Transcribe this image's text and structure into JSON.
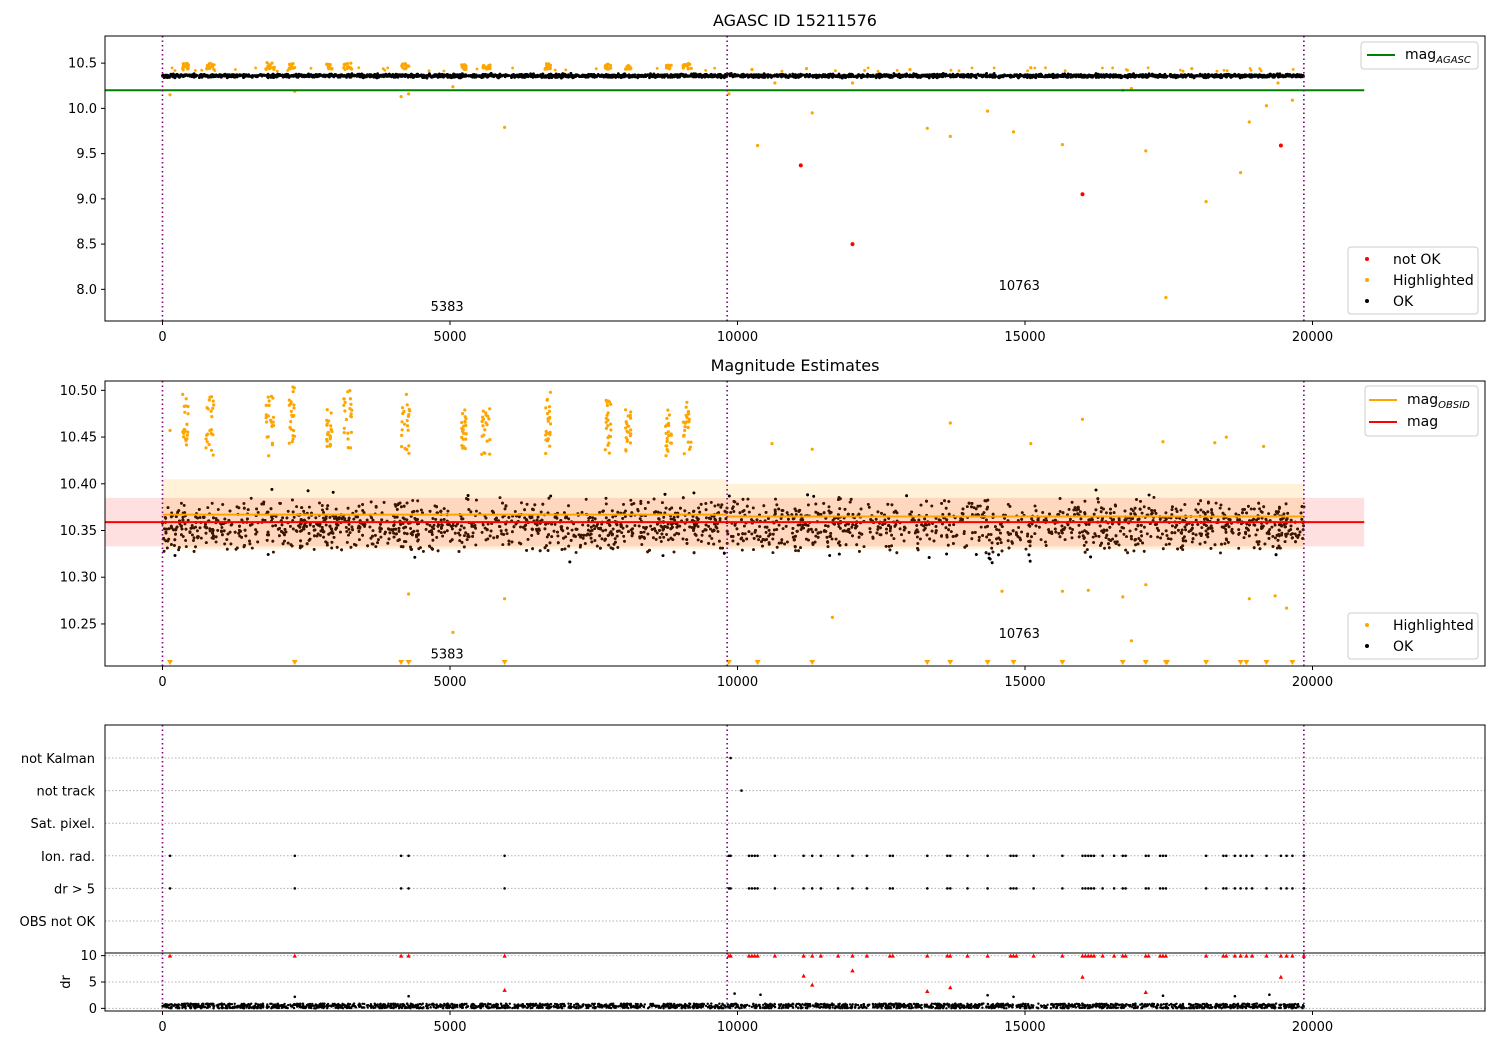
{
  "chart_data": [
    {
      "type": "scatter",
      "title": "AGASC ID 15211576",
      "xlim": [
        -1000,
        23000
      ],
      "ylim": [
        7.65,
        10.8
      ],
      "xticks": [
        0,
        5000,
        10000,
        15000,
        20000
      ],
      "yticks": [
        8.0,
        8.5,
        9.0,
        9.5,
        10.0,
        10.5
      ],
      "ytick_labels": [
        "8.0",
        "8.5",
        "9.0",
        "9.5",
        "10.0",
        "10.5"
      ],
      "obsid_boundaries": [
        0,
        9820,
        19850
      ],
      "obsid_labels": [
        {
          "text": "5383",
          "x": 4950,
          "y": 7.76
        },
        {
          "text": "10763",
          "x": 14900,
          "y": 7.99
        }
      ],
      "lines": [
        {
          "name": "mag_AGASC",
          "color": "#008000",
          "x": [
            -1000,
            20900
          ],
          "y": [
            10.2,
            10.2
          ]
        }
      ],
      "ok_band": {
        "y_center": 10.36,
        "y_spread": 0.035,
        "x_range": [
          0,
          19850
        ],
        "color": "#000000"
      },
      "highlighted_clusters": [
        {
          "x_range": [
            350,
            450
          ],
          "y_range": [
            10.43,
            10.5
          ]
        },
        {
          "x_range": [
            750,
            900
          ],
          "y_range": [
            10.43,
            10.5
          ]
        },
        {
          "x_range": [
            1800,
            1950
          ],
          "y_range": [
            10.43,
            10.52
          ]
        },
        {
          "x_range": [
            2200,
            2300
          ],
          "y_range": [
            10.43,
            10.5
          ]
        },
        {
          "x_range": [
            2850,
            2950
          ],
          "y_range": [
            10.43,
            10.49
          ]
        },
        {
          "x_range": [
            3150,
            3300
          ],
          "y_range": [
            10.43,
            10.5
          ]
        },
        {
          "x_range": [
            4150,
            4300
          ],
          "y_range": [
            10.43,
            10.5
          ]
        },
        {
          "x_range": [
            5200,
            5300
          ],
          "y_range": [
            10.43,
            10.49
          ]
        },
        {
          "x_range": [
            5550,
            5700
          ],
          "y_range": [
            10.43,
            10.49
          ]
        },
        {
          "x_range": [
            6650,
            6750
          ],
          "y_range": [
            10.43,
            10.5
          ]
        },
        {
          "x_range": [
            7700,
            7800
          ],
          "y_range": [
            10.43,
            10.49
          ]
        },
        {
          "x_range": [
            8050,
            8150
          ],
          "y_range": [
            10.43,
            10.48
          ]
        },
        {
          "x_range": [
            8750,
            8850
          ],
          "y_range": [
            10.43,
            10.48
          ]
        },
        {
          "x_range": [
            9050,
            9200
          ],
          "y_range": [
            10.43,
            10.5
          ]
        }
      ],
      "highlighted_points": {
        "x": [
          130,
          2300,
          4150,
          4280,
          5050,
          5950,
          9850,
          10350,
          10650,
          11300,
          12000,
          13300,
          13700,
          14350,
          14800,
          15650,
          16700,
          16850,
          17100,
          17450,
          18150,
          18750,
          18900,
          19200,
          19400,
          19650,
          10250,
          11200,
          13000,
          15100,
          17900
        ],
        "y": [
          10.15,
          10.19,
          10.13,
          10.16,
          10.24,
          9.79,
          10.16,
          9.59,
          10.28,
          9.95,
          10.28,
          9.78,
          9.69,
          9.97,
          9.74,
          9.6,
          10.2,
          10.22,
          9.53,
          7.91,
          8.97,
          9.29,
          9.85,
          10.03,
          10.28,
          10.09,
          10.43,
          10.44,
          10.43,
          10.45,
          10.44
        ]
      },
      "not_ok_points": {
        "x": [
          11100,
          12000,
          16000,
          19450
        ],
        "y": [
          9.37,
          8.5,
          9.05,
          9.59
        ]
      },
      "legend_lines": [
        {
          "label_base": "mag",
          "label_sub": "AGASC",
          "color": "#008000"
        }
      ],
      "legend_points": [
        {
          "label": "not OK",
          "color": "#ff0000"
        },
        {
          "label": "Highlighted",
          "color": "#ffa500"
        },
        {
          "label": "OK",
          "color": "#000000"
        }
      ]
    },
    {
      "type": "scatter",
      "title": "Magnitude Estimates",
      "xlim": [
        -1000,
        23000
      ],
      "ylim": [
        10.205,
        10.51
      ],
      "xticks": [
        0,
        5000,
        10000,
        15000,
        20000
      ],
      "yticks": [
        10.25,
        10.3,
        10.35,
        10.4,
        10.45,
        10.5
      ],
      "ytick_labels": [
        "10.25",
        "10.30",
        "10.35",
        "10.40",
        "10.45",
        "10.50"
      ],
      "obsid_boundaries": [
        0,
        9820,
        19850
      ],
      "obsid_labels": [
        {
          "text": "5383",
          "x": 4950,
          "y": 10.213
        },
        {
          "text": "10763",
          "x": 14900,
          "y": 10.235
        }
      ],
      "lines": [
        {
          "name": "mag_OBSID_5383",
          "color": "#ffa500",
          "x": [
            0,
            9820
          ],
          "y": [
            10.367,
            10.367
          ]
        },
        {
          "name": "mag_OBSID_10763",
          "color": "#ffa500",
          "x": [
            9820,
            19850
          ],
          "y": [
            10.365,
            10.365
          ]
        },
        {
          "name": "mag",
          "color": "#ff0000",
          "x": [
            -1000,
            20900
          ],
          "y": [
            10.359,
            10.359
          ]
        }
      ],
      "bands": [
        {
          "color": "#ff0000",
          "opacity": 0.12,
          "x": [
            -1000,
            20900
          ],
          "y": [
            10.333,
            10.385
          ]
        },
        {
          "color": "#ffa500",
          "opacity": 0.15,
          "x": [
            0,
            9820
          ],
          "y": [
            10.33,
            10.405
          ]
        },
        {
          "color": "#ffa500",
          "opacity": 0.15,
          "x": [
            9820,
            19850
          ],
          "y": [
            10.33,
            10.4
          ]
        }
      ],
      "ok_band": {
        "y_center": 10.356,
        "y_spread": 0.06,
        "x_range": [
          0,
          19850
        ],
        "color": "#000000"
      },
      "highlighted_clusters": [
        {
          "x_range": [
            350,
            450
          ],
          "y_range": [
            10.44,
            10.5
          ]
        },
        {
          "x_range": [
            750,
            900
          ],
          "y_range": [
            10.43,
            10.5
          ]
        },
        {
          "x_range": [
            1800,
            1950
          ],
          "y_range": [
            10.43,
            10.505
          ]
        },
        {
          "x_range": [
            2200,
            2300
          ],
          "y_range": [
            10.44,
            10.505
          ]
        },
        {
          "x_range": [
            2850,
            2950
          ],
          "y_range": [
            10.44,
            10.48
          ]
        },
        {
          "x_range": [
            3150,
            3300
          ],
          "y_range": [
            10.43,
            10.5
          ]
        },
        {
          "x_range": [
            4150,
            4300
          ],
          "y_range": [
            10.43,
            10.5
          ]
        },
        {
          "x_range": [
            5200,
            5300
          ],
          "y_range": [
            10.43,
            10.48
          ]
        },
        {
          "x_range": [
            5550,
            5700
          ],
          "y_range": [
            10.43,
            10.485
          ]
        },
        {
          "x_range": [
            6650,
            6750
          ],
          "y_range": [
            10.43,
            10.505
          ]
        },
        {
          "x_range": [
            7700,
            7800
          ],
          "y_range": [
            10.43,
            10.49
          ]
        },
        {
          "x_range": [
            8050,
            8150
          ],
          "y_range": [
            10.43,
            10.485
          ]
        },
        {
          "x_range": [
            8750,
            8850
          ],
          "y_range": [
            10.43,
            10.48
          ]
        },
        {
          "x_range": [
            9050,
            9200
          ],
          "y_range": [
            10.43,
            10.49
          ]
        }
      ],
      "highlighted_points": {
        "x": [
          130,
          4280,
          5050,
          5950,
          11650,
          14600,
          15650,
          16100,
          16700,
          16850,
          17100,
          18500,
          18900,
          19350,
          19550,
          10600,
          11300,
          13700,
          15100,
          16000,
          17400,
          18300,
          19150
        ],
        "y": [
          10.457,
          10.282,
          10.241,
          10.277,
          10.257,
          10.285,
          10.285,
          10.286,
          10.279,
          10.232,
          10.292,
          10.45,
          10.277,
          10.28,
          10.267,
          10.443,
          10.437,
          10.465,
          10.443,
          10.469,
          10.445,
          10.444,
          10.44
        ]
      },
      "triangle_markers_x": [
        130,
        2300,
        4150,
        4280,
        5950,
        9850,
        10350,
        11300,
        13300,
        13700,
        14350,
        14800,
        15650,
        16700,
        17100,
        17450,
        17470,
        18150,
        18750,
        18850,
        19200,
        19650
      ],
      "legend_lines": [
        {
          "label_base": "mag",
          "label_sub": "OBSID",
          "color": "#ffa500"
        },
        {
          "label_base": "mag",
          "label_sub": "",
          "color": "#ff0000"
        }
      ],
      "legend_points": [
        {
          "label": "Highlighted",
          "color": "#ffa500"
        },
        {
          "label": "OK",
          "color": "#000000"
        }
      ]
    },
    {
      "type": "scatter",
      "title": "",
      "xlim": [
        -1000,
        23000
      ],
      "xticks": [
        0,
        5000,
        10000,
        15000,
        20000
      ],
      "obsid_boundaries": [
        0,
        9820,
        19850
      ],
      "flag_labels": [
        "not Kalman",
        "not track",
        "Sat. pixel.",
        "Ion. rad.",
        "dr > 5",
        "OBS not OK"
      ],
      "flag_events": {
        "not Kalman": [
          9880
        ],
        "not track": [
          10070
        ],
        "Sat. pixel.": [],
        "Ion. rad.": [
          130,
          2300,
          4150,
          4280,
          5950,
          9850,
          9880,
          10200,
          10250,
          10300,
          10350,
          10650,
          11150,
          11300,
          11450,
          11750,
          12000,
          12250,
          12650,
          12700,
          13300,
          13650,
          13700,
          14000,
          14350,
          14750,
          14800,
          14850,
          15150,
          15650,
          16000,
          16050,
          16100,
          16150,
          16200,
          16350,
          16550,
          16700,
          16750,
          17100,
          17150,
          17350,
          17400,
          17450,
          18150,
          18450,
          18500,
          18650,
          18750,
          18850,
          18950,
          19200,
          19450,
          19550,
          19650,
          19850
        ],
        "dr > 5": [
          130,
          2300,
          4150,
          4280,
          5950,
          9850,
          9880,
          10200,
          10250,
          10300,
          10350,
          10650,
          11150,
          11300,
          11450,
          11750,
          12000,
          12250,
          12650,
          12700,
          13300,
          13650,
          13700,
          14000,
          14350,
          14750,
          14800,
          14850,
          15150,
          15650,
          16000,
          16050,
          16100,
          16150,
          16200,
          16350,
          16550,
          16700,
          16750,
          17100,
          17150,
          17350,
          17400,
          17450,
          18150,
          18450,
          18500,
          18650,
          18750,
          18850,
          18950,
          19200,
          19450,
          19550,
          19650,
          19850
        ],
        "OBS not OK": []
      },
      "dr_panel": {
        "ylabel": "dr",
        "ylim": [
          -0.5,
          10.5
        ],
        "yticks": [
          0,
          5,
          10
        ],
        "ytick_labels": [
          "0",
          "5",
          "10"
        ],
        "baseline": {
          "y_max": 0.9,
          "color": "#000000"
        },
        "red_points": {
          "x": [
            130,
            2300,
            4150,
            4280,
            5950,
            9850,
            9880,
            10200,
            10250,
            10300,
            10350,
            10650,
            11150,
            11300,
            11450,
            11750,
            12000,
            12250,
            12650,
            12700,
            13300,
            13650,
            13700,
            14000,
            14350,
            14750,
            14800,
            14850,
            15150,
            15650,
            16000,
            16050,
            16100,
            16150,
            16200,
            16350,
            16550,
            16700,
            16750,
            17100,
            17150,
            17350,
            17400,
            17450,
            18150,
            18450,
            18500,
            18650,
            18750,
            18850,
            18950,
            19200,
            19450,
            19550,
            19650,
            19850,
            11150,
            11300,
            12000,
            16000,
            19450,
            5950,
            13300,
            13700,
            17100
          ],
          "y": [
            10,
            10,
            10,
            10,
            10,
            10,
            10,
            10,
            10,
            10,
            10,
            10,
            10,
            10,
            10,
            10,
            10,
            10,
            10,
            10,
            10,
            10,
            10,
            10,
            10,
            10,
            10,
            10,
            10,
            10,
            10,
            10,
            10,
            10,
            10,
            10,
            10,
            10,
            10,
            10,
            10,
            10,
            10,
            10,
            10,
            10,
            10,
            10,
            10,
            10,
            10,
            10,
            10,
            10,
            10,
            10,
            6.2,
            4.5,
            7.2,
            6.0,
            6.0,
            3.5,
            3.3,
            4.0,
            3.1
          ]
        },
        "black_points": {
          "x": [
            2300,
            4280,
            9950,
            10400,
            14350,
            14800,
            17400,
            18650,
            19250
          ],
          "y": [
            2.2,
            2.3,
            2.8,
            2.6,
            2.5,
            2.2,
            2.4,
            2.3,
            2.6
          ]
        }
      }
    }
  ]
}
